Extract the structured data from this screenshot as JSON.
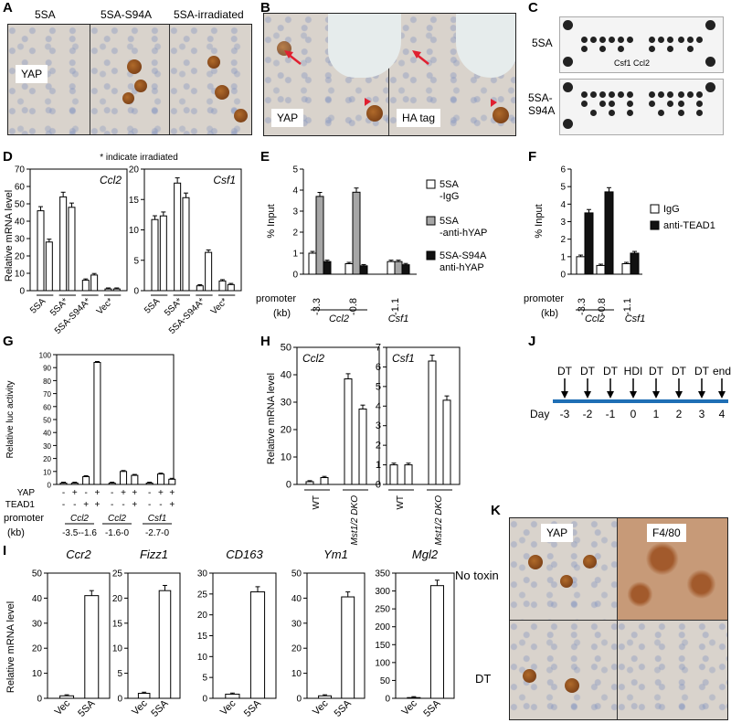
{
  "panels": {
    "A": "A",
    "B": "B",
    "C": "C",
    "D": "D",
    "E": "E",
    "F": "F",
    "G": "G",
    "H": "H",
    "I": "I",
    "J": "J",
    "K": "K"
  },
  "panelA": {
    "tiles": [
      "5SA",
      "5SA-S94A",
      "5SA-irradiated"
    ],
    "stain": "YAP"
  },
  "panelB": {
    "left_label": "YAP",
    "right_label": "HA tag"
  },
  "panelC": {
    "rows": [
      "5SA",
      "5SA-\nS94A"
    ],
    "row1": "5SA",
    "row2a": "5SA-",
    "row2b": "S94A",
    "annot_csf1": "Csf1",
    "annot_ccl2": "Ccl2"
  },
  "panelD": {
    "note": "* indicate irradiated",
    "ylabel": "Relative mRNA level",
    "charts": [
      {
        "gene": "Ccl2",
        "ylim": [
          0,
          70
        ],
        "ticks": [
          0,
          10,
          20,
          30,
          40,
          50,
          60,
          70
        ],
        "values": [
          46,
          28,
          54,
          48,
          6,
          9,
          1,
          1
        ],
        "groups": [
          "5SA",
          "5SA*",
          "5SA-S94A*",
          "Vec*"
        ]
      },
      {
        "gene": "Csf1",
        "ylim": [
          0,
          20
        ],
        "ticks": [
          0,
          5,
          10,
          15,
          20
        ],
        "values": [
          11.7,
          12.3,
          17.7,
          15.3,
          0.8,
          6.3,
          1.6,
          1
        ],
        "groups": [
          "5SA",
          "5SA*",
          "5SA-S94A*",
          "Vec*"
        ]
      }
    ]
  },
  "panelE": {
    "ylabel": "% Input",
    "yticks": [
      0,
      0.5,
      1,
      1.5,
      2,
      2.5,
      3,
      3.5,
      4,
      4.5,
      5
    ],
    "promoters": [
      "-3.3",
      "-0.8",
      "-1.1"
    ],
    "genes": [
      "Ccl2",
      "Csf1"
    ],
    "row_label": "promoter",
    "unit": "(kb)",
    "series": [
      {
        "name": "5SA\n-IgG",
        "line1": "5SA",
        "line2": "-IgG",
        "color": "#ffffff",
        "values": [
          1.0,
          0.5,
          0.6
        ]
      },
      {
        "name": "5SA\n-anti-hYAP",
        "line1": "5SA",
        "line2": "-anti-hYAP",
        "color": "#a6a6a6",
        "values": [
          3.7,
          3.9,
          0.6
        ]
      },
      {
        "name": "5SA-S94A\nanti-hYAP",
        "line1": "5SA-S94A",
        "line2": "anti-hYAP",
        "color": "#111111",
        "values": [
          0.6,
          0.4,
          0.45
        ]
      }
    ]
  },
  "panelF": {
    "ylabel": "% Input",
    "yticks": [
      0,
      1,
      2,
      3,
      4,
      5,
      6
    ],
    "promoters": [
      "-3.3",
      "-0.8",
      "-1.1"
    ],
    "genes": [
      "Ccl2",
      "Csf1"
    ],
    "row_label": "promoter",
    "unit": "(kb)",
    "series": [
      {
        "name": "IgG",
        "color": "#ffffff",
        "values": [
          1.0,
          0.5,
          0.6
        ]
      },
      {
        "name": "anti-TEAD1",
        "color": "#111111",
        "values": [
          3.5,
          4.7,
          1.2
        ]
      }
    ]
  },
  "panelG": {
    "ylabel": "Relative luc activity",
    "yticks": [
      0,
      10,
      20,
      30,
      40,
      50,
      60,
      70,
      80,
      90,
      100
    ],
    "values": [
      1,
      1,
      6,
      94,
      1,
      10,
      7,
      1,
      8,
      4
    ],
    "yap_row": [
      "-",
      "+",
      "-",
      "+",
      "-",
      "+",
      "+",
      "-",
      "+",
      "+"
    ],
    "tead_row": [
      "-",
      "-",
      "+",
      "+",
      "-",
      "-",
      "+",
      "-",
      "-",
      "+"
    ],
    "yap_label": "YAP",
    "tead_label": "TEAD1",
    "promoter_label": "promoter",
    "unit": "(kb)",
    "genes": [
      "Ccl2",
      "Ccl2",
      "Csf1"
    ],
    "ranges": [
      "-3.5--1.6",
      "-1.6-0",
      "-2.7-0"
    ]
  },
  "panelH": {
    "ylabel": "Relative mRNA level",
    "charts": [
      {
        "gene": "Ccl2",
        "ylim": [
          0,
          50
        ],
        "ticks": [
          0,
          10,
          20,
          30,
          40,
          50
        ],
        "values": [
          1,
          2.5,
          38.5,
          27.5
        ],
        "groups": [
          "WT",
          "Mst1/2 DKO"
        ]
      },
      {
        "gene": "Csf1",
        "ylim": [
          0,
          7
        ],
        "ticks": [
          0,
          1,
          2,
          3,
          4,
          5,
          6,
          7
        ],
        "values": [
          1,
          1,
          6.3,
          4.3
        ],
        "groups": [
          "WT",
          "Mst1/2 DKO"
        ]
      }
    ]
  },
  "panelI": {
    "ylabel": "Relative mRNA level",
    "charts": [
      {
        "gene": "Ccr2",
        "ylim": [
          0,
          50
        ],
        "ticks": [
          0,
          10,
          20,
          30,
          40,
          50
        ],
        "values": [
          1,
          41
        ]
      },
      {
        "gene": "Fizz1",
        "ylim": [
          0,
          25
        ],
        "ticks": [
          0,
          5,
          10,
          15,
          20,
          25
        ],
        "values": [
          1,
          21.5
        ]
      },
      {
        "gene": "CD163",
        "ylim": [
          0,
          30
        ],
        "ticks": [
          0,
          5,
          10,
          15,
          20,
          25,
          30
        ],
        "values": [
          1,
          25.5
        ]
      },
      {
        "gene": "Ym1",
        "ylim": [
          0,
          50
        ],
        "ticks": [
          0,
          10,
          20,
          30,
          40,
          50
        ],
        "values": [
          1,
          40.5
        ]
      },
      {
        "gene": "Mgl2",
        "ylim": [
          0,
          350
        ],
        "ticks": [
          0,
          50,
          100,
          150,
          200,
          250,
          300,
          350
        ],
        "values": [
          2,
          315
        ]
      }
    ],
    "categories": [
      "Vec",
      "5SA"
    ]
  },
  "panelJ": {
    "events": [
      "DT",
      "DT",
      "DT",
      "HDI",
      "DT",
      "DT",
      "DT",
      "end"
    ],
    "days": [
      "-3",
      "-2",
      "-1",
      "0",
      "1",
      "2",
      "3",
      "4"
    ],
    "day_label": "Day"
  },
  "panelK": {
    "cols": [
      "YAP",
      "F4/80"
    ],
    "rows": [
      "No toxin",
      "DT"
    ]
  },
  "colors": {
    "timeline": "#1f6fb5",
    "arrow": "#e02030",
    "bar_dark": "#111111",
    "bar_gray": "#a6a6a6"
  }
}
